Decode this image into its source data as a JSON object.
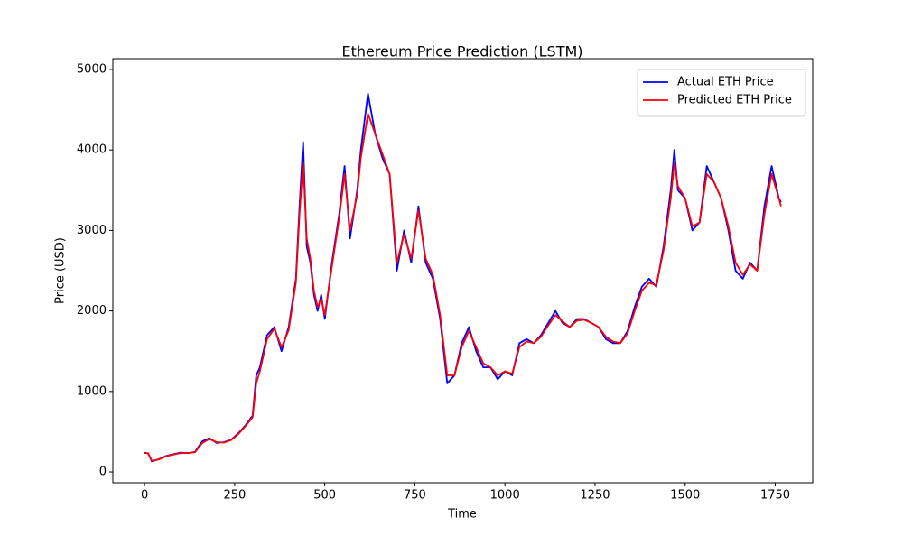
{
  "chart_data": {
    "type": "line",
    "title": "Ethereum Price Prediction (LSTM)",
    "x_label": "Time",
    "y_label": "Price (USD)",
    "x": [
      0,
      10,
      20,
      40,
      60,
      80,
      100,
      120,
      140,
      160,
      180,
      200,
      220,
      240,
      260,
      280,
      300,
      310,
      320,
      340,
      360,
      380,
      400,
      420,
      430,
      440,
      450,
      460,
      470,
      480,
      490,
      500,
      520,
      540,
      555,
      570,
      590,
      600,
      620,
      640,
      660,
      680,
      700,
      720,
      740,
      760,
      780,
      800,
      820,
      840,
      860,
      880,
      900,
      920,
      940,
      960,
      980,
      1000,
      1020,
      1040,
      1060,
      1080,
      1100,
      1120,
      1140,
      1160,
      1180,
      1200,
      1220,
      1240,
      1260,
      1280,
      1300,
      1320,
      1340,
      1360,
      1380,
      1400,
      1420,
      1440,
      1460,
      1470,
      1480,
      1500,
      1520,
      1540,
      1560,
      1580,
      1600,
      1620,
      1640,
      1660,
      1680,
      1700,
      1720,
      1740,
      1760,
      1766
    ],
    "series": [
      {
        "name": "Actual ETH Price",
        "color": "#0000ff",
        "values": [
          240,
          230,
          130,
          160,
          200,
          220,
          240,
          235,
          250,
          380,
          420,
          360,
          370,
          400,
          480,
          580,
          700,
          1200,
          1300,
          1700,
          1800,
          1500,
          1800,
          2400,
          3300,
          4100,
          2800,
          2600,
          2200,
          2000,
          2200,
          1900,
          2600,
          3200,
          3800,
          2900,
          3500,
          4000,
          4700,
          4200,
          3900,
          3700,
          2500,
          3000,
          2600,
          3300,
          2600,
          2400,
          1900,
          1100,
          1200,
          1600,
          1800,
          1500,
          1300,
          1300,
          1150,
          1250,
          1200,
          1600,
          1650,
          1600,
          1700,
          1850,
          2000,
          1850,
          1800,
          1900,
          1900,
          1850,
          1800,
          1650,
          1600,
          1600,
          1750,
          2050,
          2300,
          2400,
          2300,
          2800,
          3500,
          4000,
          3500,
          3400,
          3000,
          3100,
          3800,
          3600,
          3400,
          3000,
          2500,
          2400,
          2600,
          2500,
          3300,
          3800,
          3400,
          3350
        ]
      },
      {
        "name": "Predicted ETH Price",
        "color": "#ff0000",
        "values": [
          235,
          232,
          140,
          155,
          195,
          215,
          235,
          235,
          245,
          360,
          410,
          370,
          365,
          395,
          470,
          570,
          680,
          1100,
          1250,
          1650,
          1780,
          1550,
          1760,
          2350,
          3200,
          3850,
          2900,
          2650,
          2250,
          2050,
          2150,
          1950,
          2550,
          3150,
          3700,
          3000,
          3450,
          3900,
          4450,
          4200,
          3950,
          3700,
          2600,
          2950,
          2650,
          3250,
          2650,
          2450,
          1950,
          1200,
          1200,
          1550,
          1750,
          1550,
          1350,
          1300,
          1200,
          1250,
          1220,
          1550,
          1620,
          1600,
          1680,
          1820,
          1950,
          1870,
          1800,
          1880,
          1890,
          1850,
          1800,
          1680,
          1620,
          1600,
          1720,
          2000,
          2250,
          2350,
          2320,
          2750,
          3400,
          3850,
          3550,
          3400,
          3050,
          3100,
          3700,
          3600,
          3400,
          3050,
          2600,
          2450,
          2580,
          2500,
          3200,
          3700,
          3400,
          3300
        ]
      }
    ],
    "xlim": [
      -88,
      1854
    ],
    "ylim": [
      -134,
      5134
    ],
    "xticks": [
      0,
      250,
      500,
      750,
      1000,
      1250,
      1500,
      1750
    ],
    "yticks": [
      0,
      1000,
      2000,
      3000,
      4000,
      5000
    ],
    "legend": "upper right"
  }
}
